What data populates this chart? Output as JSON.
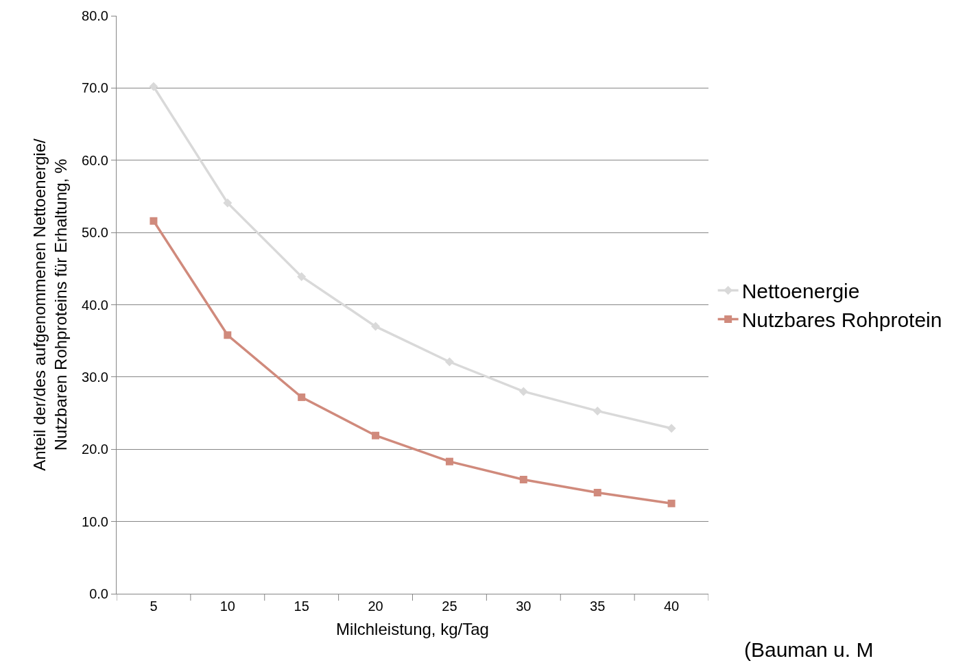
{
  "chart_data": {
    "type": "line",
    "xlabel": "Milchleistung, kg/Tag",
    "ylabel": "Anteil der/des aufgenommenen Nettoenergie/\nNutzbaren Rohproteins für Erhaltung, %",
    "categories": [
      "5",
      "10",
      "15",
      "20",
      "25",
      "30",
      "35",
      "40"
    ],
    "series": [
      {
        "name": "Nettoenergie",
        "color": "#d9d9d9",
        "marker": "diamond",
        "values": [
          70.2,
          54.1,
          43.9,
          37.0,
          32.1,
          28.0,
          25.3,
          22.9
        ]
      },
      {
        "name": "Nutzbares Rohprotein",
        "color": "#d08a7c",
        "marker": "square",
        "values": [
          51.6,
          35.8,
          27.2,
          21.9,
          18.3,
          15.8,
          14.0,
          12.5
        ]
      }
    ],
    "ylim": [
      0,
      80
    ],
    "yticks": [
      {
        "value": 0,
        "label": "0.0"
      },
      {
        "value": 10,
        "label": "10.0"
      },
      {
        "value": 20,
        "label": "20.0"
      },
      {
        "value": 30,
        "label": "30.0"
      },
      {
        "value": 40,
        "label": "40.0"
      },
      {
        "value": 50,
        "label": "50.0"
      },
      {
        "value": 60,
        "label": "60.0"
      },
      {
        "value": 70,
        "label": "70.0"
      },
      {
        "value": 80,
        "label": "80.0"
      }
    ],
    "grid": "y",
    "legend": "right",
    "line_style": "solid",
    "annotations": [
      "(Bauman u. M"
    ]
  }
}
